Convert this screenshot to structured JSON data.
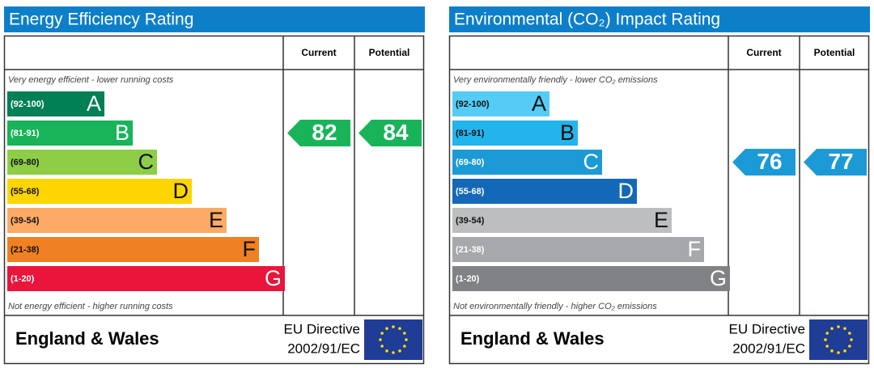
{
  "panels": [
    {
      "title": "Energy Efficiency Rating",
      "columns": [
        "Current",
        "Potential"
      ],
      "top_note": "Very energy efficient - lower running costs",
      "bottom_note": "Not energy efficient - higher running costs",
      "bands": [
        {
          "range": "(92-100)",
          "letter": "A",
          "color": "#008054"
        },
        {
          "range": "(81-91)",
          "letter": "B",
          "color": "#19b459"
        },
        {
          "range": "(69-80)",
          "letter": "C",
          "color": "#8dce46"
        },
        {
          "range": "(55-68)",
          "letter": "D",
          "color": "#ffd500"
        },
        {
          "range": "(39-54)",
          "letter": "E",
          "color": "#fcaa65"
        },
        {
          "range": "(21-38)",
          "letter": "F",
          "color": "#ef8023"
        },
        {
          "range": "(1-20)",
          "letter": "G",
          "color": "#e9153b"
        }
      ],
      "current": 82,
      "potential": 84,
      "region": "England & Wales",
      "directive": [
        "EU Directive",
        "2002/91/EC"
      ]
    },
    {
      "title": "Environmental (CO₂) Impact Rating",
      "columns": [
        "Current",
        "Potential"
      ],
      "top_note": "Very environmentally friendly - lower CO₂ emissions",
      "bottom_note": "Not environmentally friendly - higher CO₂ emissions",
      "bands": [
        {
          "range": "(92-100)",
          "letter": "A",
          "color": "#55ccf5"
        },
        {
          "range": "(81-91)",
          "letter": "B",
          "color": "#22b5eb"
        },
        {
          "range": "(69-80)",
          "letter": "C",
          "color": "#1c9ad6"
        },
        {
          "range": "(55-68)",
          "letter": "D",
          "color": "#1468b8"
        },
        {
          "range": "(39-54)",
          "letter": "E",
          "color": "#bcbec0"
        },
        {
          "range": "(21-38)",
          "letter": "F",
          "color": "#a6a8ab"
        },
        {
          "range": "(1-20)",
          "letter": "G",
          "color": "#808285"
        }
      ],
      "current": 76,
      "potential": 77,
      "region": "England & Wales",
      "directive": [
        "EU Directive",
        "2002/91/EC"
      ]
    }
  ]
}
